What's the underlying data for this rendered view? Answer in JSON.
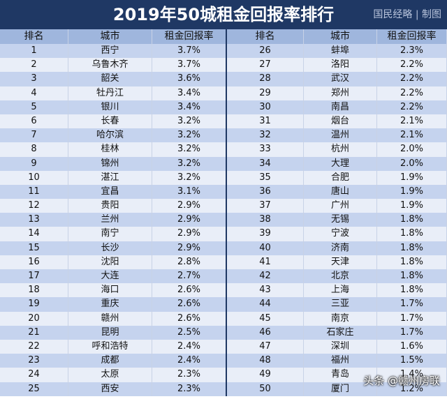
{
  "header": {
    "title": "2019年50城租金回报率排行",
    "brand": "国民经略 | 制图"
  },
  "table": {
    "columns": [
      "排名",
      "城市",
      "租金回报率",
      "排名",
      "城市",
      "租金回报率"
    ],
    "rows": [
      [
        1,
        "西宁",
        "3.7%",
        26,
        "蚌埠",
        "2.3%"
      ],
      [
        2,
        "乌鲁木齐",
        "3.7%",
        27,
        "洛阳",
        "2.2%"
      ],
      [
        3,
        "韶关",
        "3.6%",
        28,
        "武汉",
        "2.2%"
      ],
      [
        4,
        "牡丹江",
        "3.4%",
        29,
        "郑州",
        "2.2%"
      ],
      [
        5,
        "银川",
        "3.4%",
        30,
        "南昌",
        "2.2%"
      ],
      [
        6,
        "长春",
        "3.2%",
        31,
        "烟台",
        "2.1%"
      ],
      [
        7,
        "哈尔滨",
        "3.2%",
        32,
        "温州",
        "2.1%"
      ],
      [
        8,
        "桂林",
        "3.2%",
        33,
        "杭州",
        "2.0%"
      ],
      [
        9,
        "锦州",
        "3.2%",
        34,
        "大理",
        "2.0%"
      ],
      [
        10,
        "湛江",
        "3.2%",
        35,
        "合肥",
        "1.9%"
      ],
      [
        11,
        "宜昌",
        "3.1%",
        36,
        "唐山",
        "1.9%"
      ],
      [
        12,
        "贵阳",
        "2.9%",
        37,
        "广州",
        "1.9%"
      ],
      [
        13,
        "兰州",
        "2.9%",
        38,
        "无锡",
        "1.8%"
      ],
      [
        14,
        "南宁",
        "2.9%",
        39,
        "宁波",
        "1.8%"
      ],
      [
        15,
        "长沙",
        "2.9%",
        40,
        "济南",
        "1.8%"
      ],
      [
        16,
        "沈阳",
        "2.8%",
        41,
        "天津",
        "1.8%"
      ],
      [
        17,
        "大连",
        "2.7%",
        42,
        "北京",
        "1.8%"
      ],
      [
        18,
        "海口",
        "2.6%",
        43,
        "上海",
        "1.8%"
      ],
      [
        19,
        "重庆",
        "2.6%",
        44,
        "三亚",
        "1.7%"
      ],
      [
        20,
        "赣州",
        "2.6%",
        45,
        "南京",
        "1.7%"
      ],
      [
        21,
        "昆明",
        "2.5%",
        46,
        "石家庄",
        "1.7%"
      ],
      [
        22,
        "呼和浩特",
        "2.4%",
        47,
        "深圳",
        "1.6%"
      ],
      [
        23,
        "成都",
        "2.4%",
        48,
        "福州",
        "1.5%"
      ],
      [
        24,
        "太原",
        "2.3%",
        49,
        "青岛",
        "1.4%"
      ],
      [
        25,
        "西安",
        "2.3%",
        50,
        "厦门",
        "1.2%"
      ]
    ]
  },
  "watermark": "头条 @赣州房联"
}
